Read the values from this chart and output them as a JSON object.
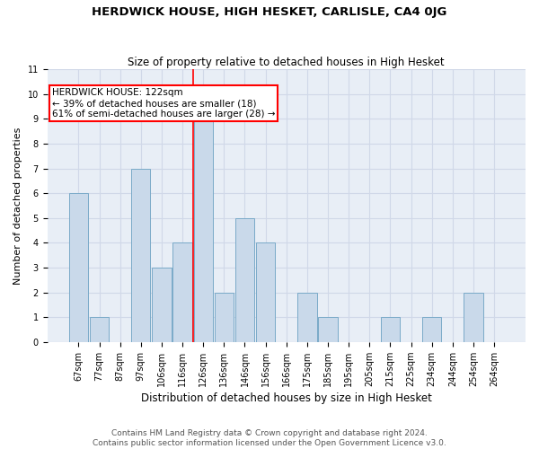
{
  "title": "HERDWICK HOUSE, HIGH HESKET, CARLISLE, CA4 0JG",
  "subtitle": "Size of property relative to detached houses in High Hesket",
  "xlabel": "Distribution of detached houses by size in High Hesket",
  "ylabel": "Number of detached properties",
  "categories": [
    "67sqm",
    "77sqm",
    "87sqm",
    "97sqm",
    "106sqm",
    "116sqm",
    "126sqm",
    "136sqm",
    "146sqm",
    "156sqm",
    "166sqm",
    "175sqm",
    "185sqm",
    "195sqm",
    "205sqm",
    "215sqm",
    "225sqm",
    "234sqm",
    "244sqm",
    "254sqm",
    "264sqm"
  ],
  "values": [
    6,
    1,
    0,
    7,
    3,
    4,
    9,
    2,
    5,
    4,
    0,
    2,
    1,
    0,
    0,
    1,
    0,
    1,
    0,
    2,
    0
  ],
  "bar_color": "#c9d9ea",
  "bar_edge_color": "#7aaac8",
  "grid_color": "#d0d8e8",
  "background_color": "#e8eef6",
  "red_line_x": 6.0,
  "annotation_text": "HERDWICK HOUSE: 122sqm\n← 39% of detached houses are smaller (18)\n61% of semi-detached houses are larger (28) →",
  "annotation_box_color": "white",
  "annotation_box_edge": "red",
  "ylim": [
    0,
    11
  ],
  "yticks": [
    0,
    1,
    2,
    3,
    4,
    5,
    6,
    7,
    8,
    9,
    10,
    11
  ],
  "footer1": "Contains HM Land Registry data © Crown copyright and database right 2024.",
  "footer2": "Contains public sector information licensed under the Open Government Licence v3.0.",
  "title_fontsize": 9.5,
  "subtitle_fontsize": 8.5,
  "xlabel_fontsize": 8.5,
  "ylabel_fontsize": 8,
  "tick_fontsize": 7,
  "annotation_fontsize": 7.5,
  "footer_fontsize": 6.5
}
